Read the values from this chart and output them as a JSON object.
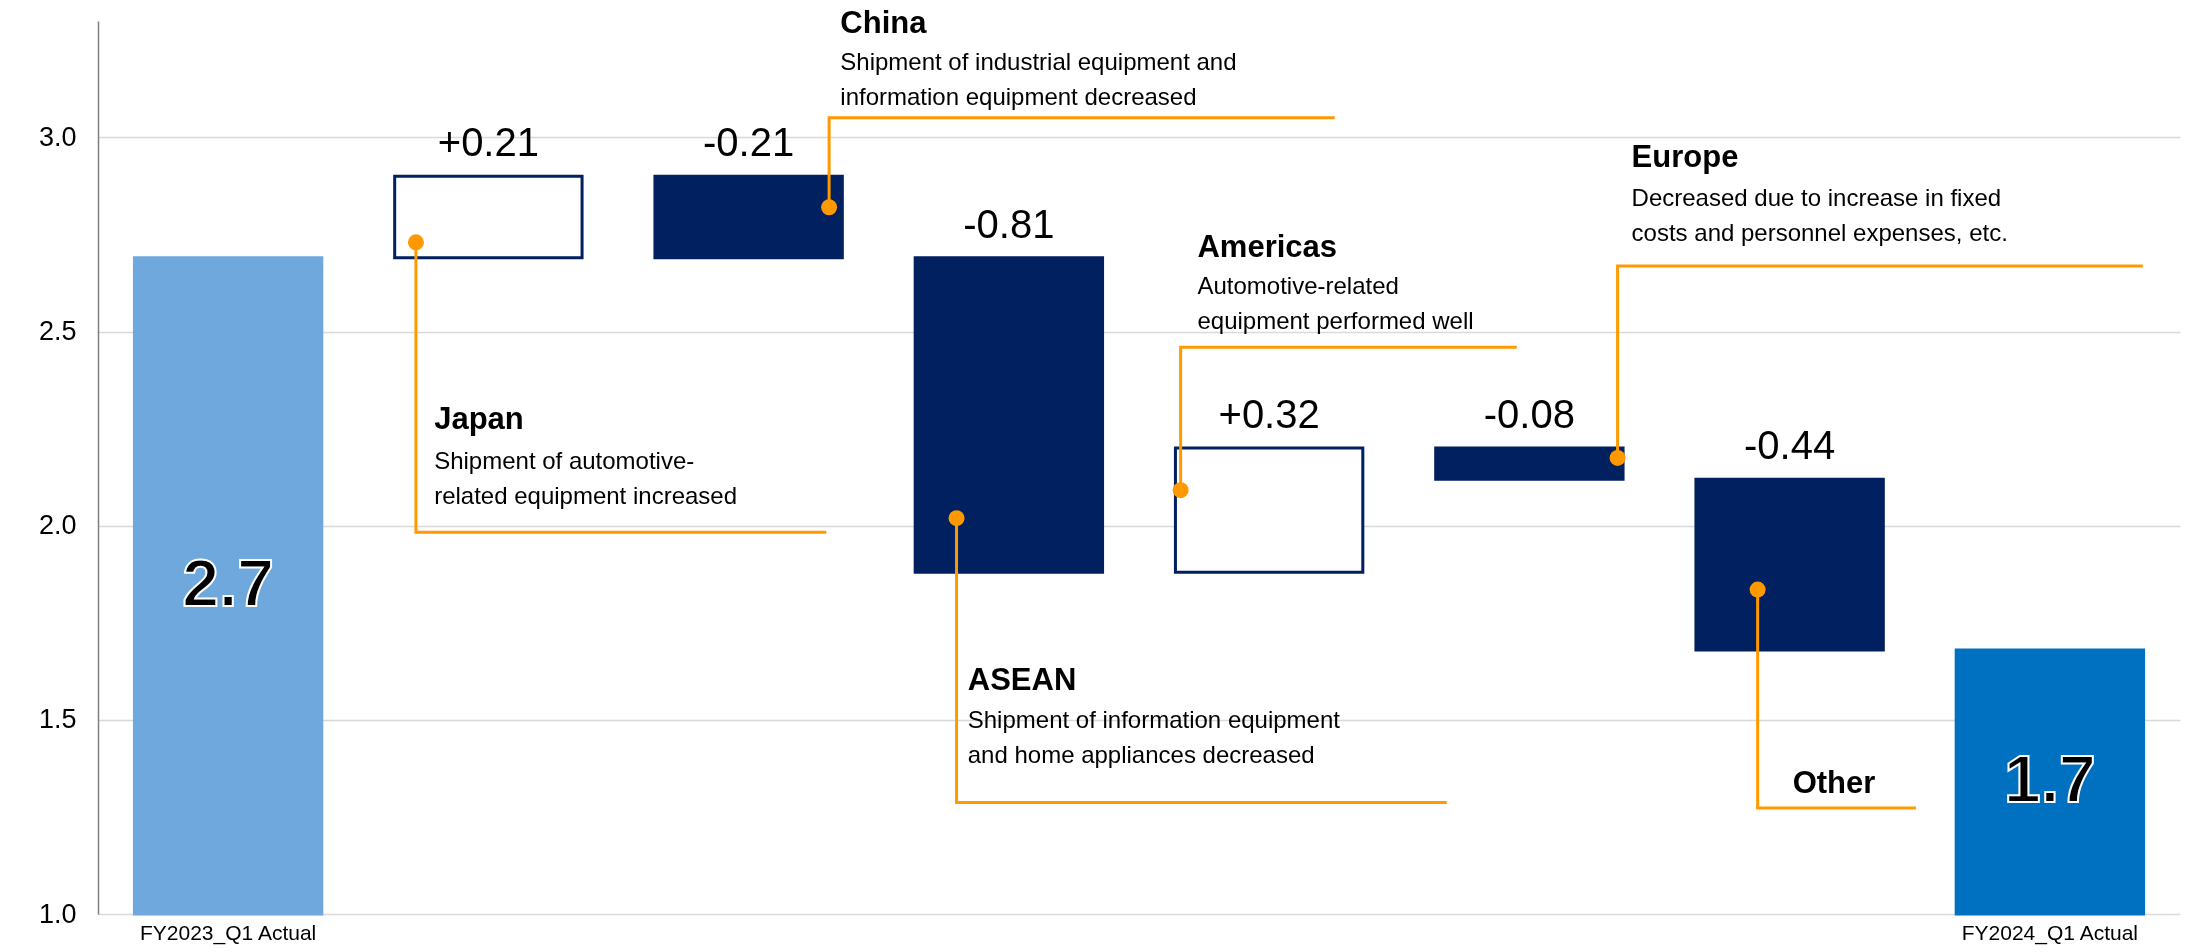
{
  "chart_data": {
    "type": "bar",
    "categories": [
      "FY2023_Q1 Actual",
      null,
      null,
      null,
      null,
      null,
      null,
      "FY2024_Q1 Actual"
    ],
    "values": [
      2.69,
      0.21,
      -0.21,
      -0.81,
      0.32,
      -0.08,
      -0.44,
      1.68
    ],
    "base": [
      null,
      2.69,
      2.9,
      2.69,
      1.88,
      2.2,
      2.12,
      null
    ],
    "colors": [
      "#6fa8dc",
      "#ffffff",
      "#002060",
      "#002060",
      "#ffffff",
      "#002060",
      "#002060",
      "#0070c0"
    ],
    "value_labels": [
      "2.7",
      "+0.21",
      "-0.21",
      "-0.81",
      "+0.32",
      "-0.08",
      "-0.44",
      "1.7"
    ],
    "ylim": [
      1.0,
      3.3
    ],
    "yticks": [
      {
        "value": 1,
        "label": "1.0"
      },
      1.5,
      {
        "value": 2,
        "label": "2.0"
      },
      2.5,
      {
        "value": 3,
        "label": "3.0"
      }
    ],
    "grid": "y",
    "annotations": [
      "Japan",
      "Shipment of automotive-\nrelated equipment increased",
      "China",
      "Shipment of industrial equipment and\ninformation equipment decreased",
      "ASEAN",
      "Shipment of information equipment\nand home appliances decreased",
      "Americas",
      "Automotive-related\nequipment performed well",
      "Europe",
      "Decreased due to increase in fixed\ncosts and personnel expenses, etc.",
      "Other"
    ]
  }
}
